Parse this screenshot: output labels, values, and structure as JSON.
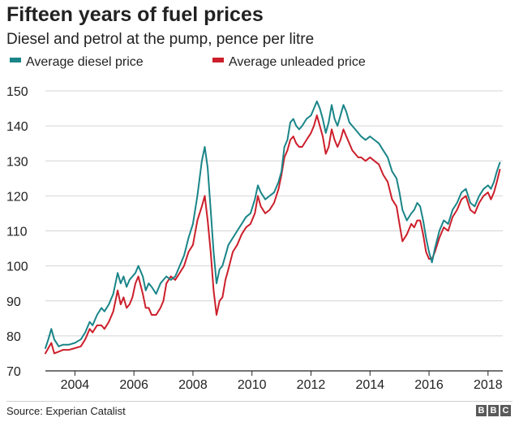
{
  "header": {
    "title": "Fifteen years of fuel prices",
    "subtitle": "Diesel and petrol at the pump, pence per litre"
  },
  "colors": {
    "diesel": "#1a8588",
    "petrol": "#cc1f2b",
    "grid": "#d4d4d4",
    "axis": "#222222"
  },
  "footer": {
    "source": "Source: Experian Catalist",
    "logo_letters": [
      "B",
      "B",
      "C"
    ]
  },
  "chart_data": {
    "type": "line",
    "title": "Fifteen years of fuel prices",
    "subtitle": "Diesel and petrol at the pump, pence per litre",
    "xlabel": "",
    "ylabel": "pence per litre",
    "xlim": [
      2003.0,
      2018.5
    ],
    "ylim": [
      70,
      150
    ],
    "grid": true,
    "legend": "top-left",
    "xticks": [
      2004,
      2006,
      2008,
      2010,
      2012,
      2014,
      2016,
      2018
    ],
    "yticks": [
      70,
      80,
      90,
      100,
      110,
      120,
      130,
      140,
      150
    ],
    "series": [
      {
        "name": "Average diesel price",
        "key": "diesel",
        "x": [
          2003.0,
          2003.1,
          2003.2,
          2003.3,
          2003.45,
          2003.6,
          2003.8,
          2004.0,
          2004.2,
          2004.35,
          2004.5,
          2004.6,
          2004.75,
          2004.9,
          2005.0,
          2005.15,
          2005.3,
          2005.45,
          2005.55,
          2005.65,
          2005.75,
          2005.85,
          2005.95,
          2006.05,
          2006.15,
          2006.3,
          2006.4,
          2006.5,
          2006.6,
          2006.75,
          2006.9,
          2007.0,
          2007.1,
          2007.25,
          2007.4,
          2007.55,
          2007.7,
          2007.85,
          2008.0,
          2008.15,
          2008.3,
          2008.4,
          2008.5,
          2008.6,
          2008.7,
          2008.8,
          2008.9,
          2009.0,
          2009.1,
          2009.2,
          2009.35,
          2009.5,
          2009.65,
          2009.8,
          2009.95,
          2010.1,
          2010.2,
          2010.3,
          2010.45,
          2010.6,
          2010.75,
          2010.9,
          2011.0,
          2011.1,
          2011.2,
          2011.3,
          2011.4,
          2011.5,
          2011.6,
          2011.7,
          2011.85,
          2012.0,
          2012.1,
          2012.2,
          2012.3,
          2012.4,
          2012.5,
          2012.6,
          2012.7,
          2012.8,
          2012.9,
          2013.0,
          2013.1,
          2013.2,
          2013.3,
          2013.4,
          2013.5,
          2013.6,
          2013.7,
          2013.85,
          2014.0,
          2014.15,
          2014.3,
          2014.45,
          2014.6,
          2014.75,
          2014.9,
          2015.0,
          2015.1,
          2015.25,
          2015.4,
          2015.5,
          2015.6,
          2015.7,
          2015.8,
          2015.9,
          2016.0,
          2016.1,
          2016.2,
          2016.35,
          2016.5,
          2016.65,
          2016.8,
          2016.95,
          2017.1,
          2017.25,
          2017.4,
          2017.55,
          2017.7,
          2017.85,
          2018.0,
          2018.1,
          2018.2,
          2018.3,
          2018.4
        ],
        "values": [
          76.5,
          79,
          82,
          79,
          77,
          77.5,
          77.5,
          78,
          79,
          81,
          84,
          83,
          86,
          88,
          87,
          89,
          92,
          98,
          95,
          97,
          94,
          96,
          97,
          98,
          100,
          97,
          93,
          95,
          94,
          92,
          95,
          96,
          97,
          96,
          97,
          100,
          103,
          108,
          112,
          120,
          130,
          134,
          128,
          116,
          104,
          95,
          99,
          100,
          103,
          106,
          108,
          110,
          112,
          114,
          115,
          119,
          123,
          121,
          119,
          120,
          121,
          124,
          127,
          134,
          136,
          141,
          142,
          140,
          139,
          140,
          142,
          143,
          145,
          147,
          145,
          142,
          138,
          141,
          146,
          142,
          140,
          143,
          146,
          144,
          141,
          140,
          139,
          138,
          137,
          136,
          137,
          136,
          135,
          133,
          131,
          127,
          125,
          121,
          116,
          113,
          115,
          116,
          118,
          117,
          113,
          108,
          104,
          101,
          105,
          110,
          113,
          112,
          116,
          118,
          121,
          122,
          118,
          117,
          120,
          122,
          123,
          122,
          124,
          127,
          129.5
        ]
      },
      {
        "name": "Average unleaded price",
        "key": "petrol",
        "x": [
          2003.0,
          2003.1,
          2003.2,
          2003.3,
          2003.45,
          2003.6,
          2003.8,
          2004.0,
          2004.2,
          2004.35,
          2004.5,
          2004.6,
          2004.75,
          2004.9,
          2005.0,
          2005.15,
          2005.3,
          2005.45,
          2005.55,
          2005.65,
          2005.75,
          2005.85,
          2005.95,
          2006.05,
          2006.15,
          2006.3,
          2006.4,
          2006.5,
          2006.6,
          2006.75,
          2006.9,
          2007.0,
          2007.1,
          2007.25,
          2007.4,
          2007.55,
          2007.7,
          2007.85,
          2008.0,
          2008.15,
          2008.3,
          2008.4,
          2008.5,
          2008.6,
          2008.7,
          2008.8,
          2008.9,
          2009.0,
          2009.1,
          2009.2,
          2009.35,
          2009.5,
          2009.65,
          2009.8,
          2009.95,
          2010.1,
          2010.2,
          2010.3,
          2010.45,
          2010.6,
          2010.75,
          2010.9,
          2011.0,
          2011.1,
          2011.2,
          2011.3,
          2011.4,
          2011.5,
          2011.6,
          2011.7,
          2011.85,
          2012.0,
          2012.1,
          2012.2,
          2012.3,
          2012.4,
          2012.5,
          2012.6,
          2012.7,
          2012.8,
          2012.9,
          2013.0,
          2013.1,
          2013.2,
          2013.3,
          2013.4,
          2013.5,
          2013.6,
          2013.7,
          2013.85,
          2014.0,
          2014.15,
          2014.3,
          2014.45,
          2014.6,
          2014.75,
          2014.9,
          2015.0,
          2015.1,
          2015.25,
          2015.4,
          2015.5,
          2015.6,
          2015.7,
          2015.8,
          2015.9,
          2016.0,
          2016.1,
          2016.2,
          2016.35,
          2016.5,
          2016.65,
          2016.8,
          2016.95,
          2017.1,
          2017.25,
          2017.4,
          2017.55,
          2017.7,
          2017.85,
          2018.0,
          2018.1,
          2018.2,
          2018.3,
          2018.4
        ],
        "values": [
          75,
          76.5,
          78,
          75,
          75.5,
          76,
          76,
          76.5,
          77,
          79,
          82,
          81,
          83,
          83,
          82,
          84,
          87,
          93,
          89,
          91,
          88,
          89,
          91,
          95,
          97,
          92,
          88,
          88,
          86,
          86,
          88,
          90,
          95,
          97,
          96,
          98,
          100,
          104,
          106,
          113,
          117,
          120,
          113,
          104,
          93,
          86,
          90,
          91,
          96,
          99,
          104,
          106,
          109,
          111,
          112,
          115,
          120,
          117,
          115,
          116,
          118,
          122,
          126,
          131,
          133,
          136,
          137,
          135,
          134,
          134,
          136,
          138,
          140,
          143,
          140,
          137,
          132,
          134,
          139,
          136,
          134,
          136,
          139,
          137,
          135,
          133,
          132,
          131,
          131,
          130,
          131,
          130,
          129,
          126,
          124,
          119,
          117,
          112,
          107,
          109,
          112,
          111,
          113,
          113,
          109,
          104,
          102,
          102,
          104,
          108,
          111,
          110,
          114,
          116,
          119,
          120,
          116,
          115,
          118,
          120,
          121,
          119,
          121,
          124,
          127.5
        ]
      }
    ]
  }
}
